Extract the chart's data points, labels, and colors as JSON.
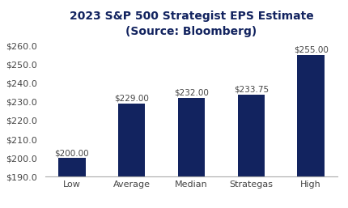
{
  "title_line1": "2023 S&P 500 Strategist EPS Estimate",
  "title_line2": "(Source: Bloomberg)",
  "categories": [
    "Low",
    "Average",
    "Median",
    "Strategas",
    "High"
  ],
  "values": [
    200.0,
    229.0,
    232.0,
    233.75,
    255.0
  ],
  "labels": [
    "$200.00",
    "$229.00",
    "$232.00",
    "$233.75",
    "$255.00"
  ],
  "bar_color": "#12235f",
  "ylim": [
    190,
    262
  ],
  "yticks": [
    190,
    200,
    210,
    220,
    230,
    240,
    250,
    260
  ],
  "background_color": "#ffffff",
  "title_color": "#12235f",
  "title_fontsize": 10,
  "tick_label_fontsize": 8,
  "bar_label_fontsize": 7.5,
  "axis_label_color": "#444444"
}
